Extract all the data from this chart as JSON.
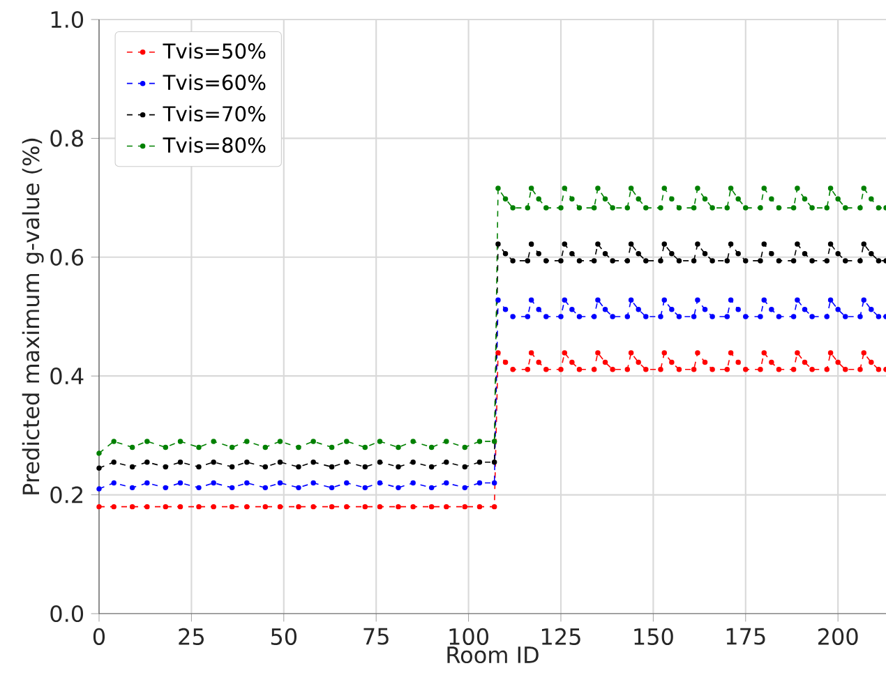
{
  "chart_data": {
    "type": "line",
    "xlabel": "Room ID",
    "ylabel": "Predicted maximum g-value (%)",
    "x": [
      0,
      4,
      9,
      13,
      18,
      22,
      27,
      31,
      36,
      40,
      45,
      49,
      54,
      58,
      63,
      67,
      72,
      76,
      81,
      85,
      90,
      94,
      99,
      103,
      107,
      108,
      110,
      112,
      116,
      117,
      119,
      121,
      125,
      126,
      128,
      130,
      134,
      135,
      137,
      139,
      143,
      144,
      146,
      148,
      152,
      153,
      155,
      157,
      161,
      162,
      164,
      166,
      170,
      171,
      173,
      175,
      179,
      180,
      182,
      184,
      188,
      189,
      191,
      193,
      197,
      198,
      200,
      202,
      206,
      207,
      209,
      211,
      213
    ],
    "series": [
      {
        "name": "Tvis=50%",
        "color": "#ff0000",
        "values": [
          0.18,
          0.18,
          0.18,
          0.18,
          0.18,
          0.18,
          0.18,
          0.18,
          0.18,
          0.18,
          0.18,
          0.18,
          0.18,
          0.18,
          0.18,
          0.18,
          0.18,
          0.18,
          0.18,
          0.18,
          0.18,
          0.18,
          0.18,
          0.18,
          0.18,
          0.439,
          0.423,
          0.411,
          0.411,
          0.439,
          0.423,
          0.411,
          0.411,
          0.439,
          0.423,
          0.411,
          0.411,
          0.439,
          0.423,
          0.411,
          0.411,
          0.439,
          0.423,
          0.411,
          0.411,
          0.439,
          0.423,
          0.411,
          0.411,
          0.439,
          0.423,
          0.411,
          0.411,
          0.439,
          0.423,
          0.411,
          0.411,
          0.439,
          0.423,
          0.411,
          0.411,
          0.439,
          0.423,
          0.411,
          0.411,
          0.439,
          0.423,
          0.411,
          0.411,
          0.439,
          0.423,
          0.411,
          0.411
        ]
      },
      {
        "name": "Tvis=60%",
        "color": "#0000ff",
        "values": [
          0.21,
          0.22,
          0.212,
          0.22,
          0.212,
          0.22,
          0.212,
          0.22,
          0.212,
          0.22,
          0.212,
          0.22,
          0.212,
          0.22,
          0.212,
          0.22,
          0.212,
          0.22,
          0.212,
          0.22,
          0.212,
          0.22,
          0.212,
          0.22,
          0.22,
          0.528,
          0.512,
          0.5,
          0.5,
          0.528,
          0.512,
          0.5,
          0.5,
          0.528,
          0.512,
          0.5,
          0.5,
          0.528,
          0.512,
          0.5,
          0.5,
          0.528,
          0.512,
          0.5,
          0.5,
          0.528,
          0.512,
          0.5,
          0.5,
          0.528,
          0.512,
          0.5,
          0.5,
          0.528,
          0.512,
          0.5,
          0.5,
          0.528,
          0.512,
          0.5,
          0.5,
          0.528,
          0.512,
          0.5,
          0.5,
          0.528,
          0.512,
          0.5,
          0.5,
          0.528,
          0.512,
          0.5,
          0.5
        ]
      },
      {
        "name": "Tvis=70%",
        "color": "#000000",
        "values": [
          0.245,
          0.255,
          0.247,
          0.255,
          0.247,
          0.255,
          0.247,
          0.255,
          0.247,
          0.255,
          0.247,
          0.255,
          0.247,
          0.255,
          0.247,
          0.255,
          0.247,
          0.255,
          0.247,
          0.255,
          0.247,
          0.255,
          0.247,
          0.255,
          0.255,
          0.622,
          0.606,
          0.594,
          0.594,
          0.622,
          0.606,
          0.594,
          0.594,
          0.622,
          0.606,
          0.594,
          0.594,
          0.622,
          0.606,
          0.594,
          0.594,
          0.622,
          0.606,
          0.594,
          0.594,
          0.622,
          0.606,
          0.594,
          0.594,
          0.622,
          0.606,
          0.594,
          0.594,
          0.622,
          0.606,
          0.594,
          0.594,
          0.622,
          0.606,
          0.594,
          0.594,
          0.622,
          0.606,
          0.594,
          0.594,
          0.622,
          0.606,
          0.594,
          0.594,
          0.622,
          0.606,
          0.594,
          0.594
        ]
      },
      {
        "name": "Tvis=80%",
        "color": "#008000",
        "values": [
          0.27,
          0.29,
          0.28,
          0.29,
          0.28,
          0.29,
          0.28,
          0.29,
          0.28,
          0.29,
          0.28,
          0.29,
          0.28,
          0.29,
          0.28,
          0.29,
          0.28,
          0.29,
          0.28,
          0.29,
          0.28,
          0.29,
          0.28,
          0.29,
          0.29,
          0.716,
          0.698,
          0.683,
          0.683,
          0.716,
          0.698,
          0.683,
          0.683,
          0.716,
          0.698,
          0.683,
          0.683,
          0.716,
          0.698,
          0.683,
          0.683,
          0.716,
          0.698,
          0.683,
          0.683,
          0.716,
          0.698,
          0.683,
          0.683,
          0.716,
          0.698,
          0.683,
          0.683,
          0.716,
          0.698,
          0.683,
          0.683,
          0.716,
          0.698,
          0.683,
          0.683,
          0.716,
          0.698,
          0.683,
          0.683,
          0.716,
          0.698,
          0.683,
          0.683,
          0.716,
          0.698,
          0.683,
          0.683
        ]
      }
    ],
    "xlim": [
      0,
      213
    ],
    "ylim": [
      0,
      1
    ],
    "xticks": [
      0,
      25,
      50,
      75,
      100,
      125,
      150,
      175,
      200
    ],
    "yticks": [
      {
        "value": 0,
        "label": "0.0"
      },
      {
        "value": 0.2,
        "label": "0.2"
      },
      {
        "value": 0.4,
        "label": "0.4"
      },
      {
        "value": 0.6,
        "label": "0.6"
      },
      {
        "value": 0.8,
        "label": "0.8"
      },
      {
        "value": 1,
        "label": "1.0"
      }
    ],
    "grid": true,
    "legend": "top left",
    "marker": "circle",
    "line_style": "dashed"
  }
}
